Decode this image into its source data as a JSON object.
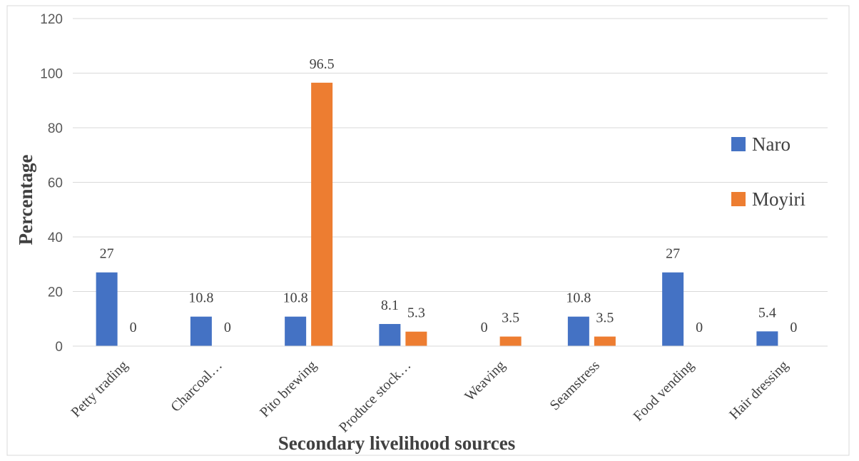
{
  "chart_data": {
    "type": "bar",
    "xlabel": "Secondary livelihood sources",
    "ylabel": "Percentage",
    "ylim": [
      0,
      120
    ],
    "yticks": [
      0,
      20,
      40,
      60,
      80,
      100,
      120
    ],
    "grid": true,
    "legend_position": "right",
    "categories": [
      "Petty trading",
      "Charcoal…",
      "Pito brewing",
      "Produce stock…",
      "Weaving",
      "Seamstress",
      "Food vending",
      "Hair dressing"
    ],
    "series": [
      {
        "name": "Naro",
        "color": "#4472c4",
        "values": [
          27,
          10.8,
          10.8,
          8.1,
          0,
          10.8,
          27,
          5.4
        ],
        "labels": [
          "27",
          "10.8",
          "10.8",
          "8.1",
          "0",
          "10.8",
          "27",
          "5.4"
        ]
      },
      {
        "name": "Moyiri",
        "color": "#ed7d31",
        "values": [
          0,
          0,
          96.5,
          5.3,
          3.5,
          3.5,
          0,
          0
        ],
        "labels": [
          "0",
          "0",
          "96.5",
          "5.3",
          "3.5",
          "3.5",
          "0",
          "0"
        ]
      }
    ]
  }
}
